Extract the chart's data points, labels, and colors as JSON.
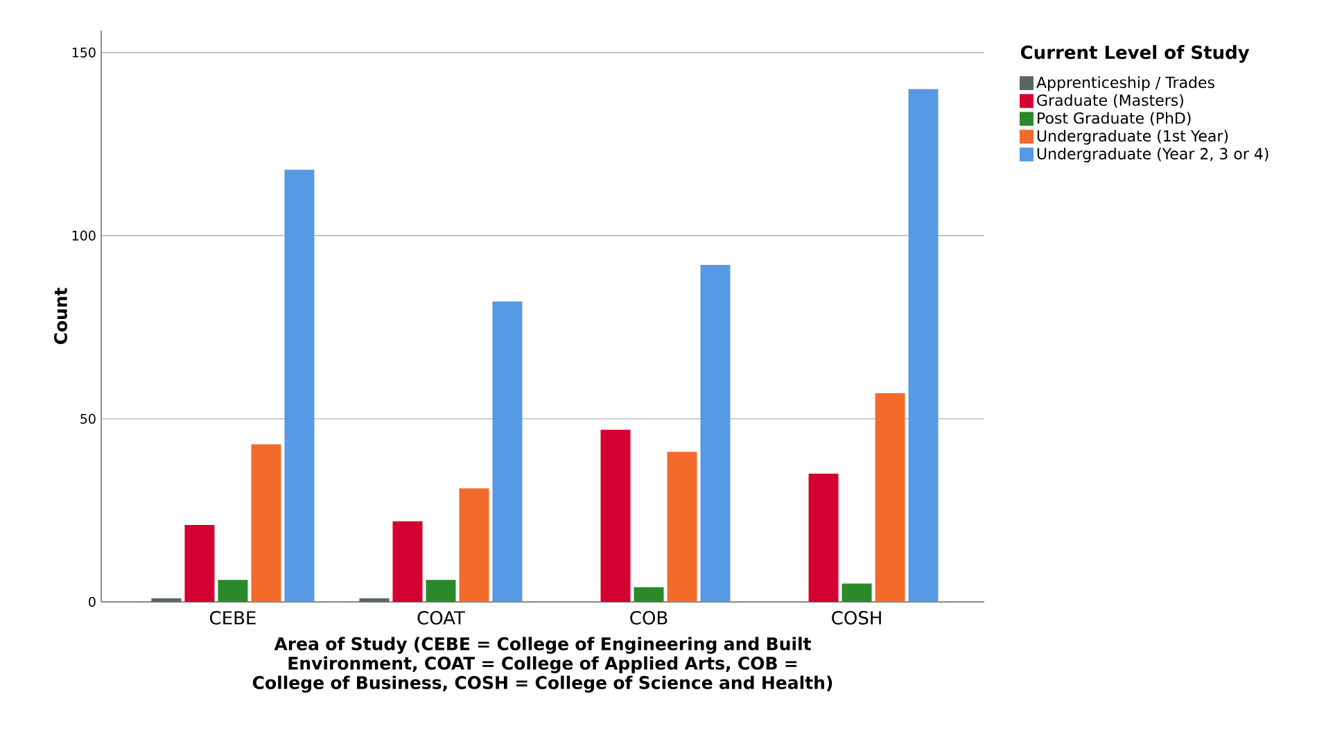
{
  "chart_data": {
    "type": "bar",
    "xlabel": "Area of Study (CEBE = College of Engineering and Built Environment, COAT = College of Applied Arts, COB = College of Business, COSH = College of Science and Health)",
    "ylabel": "Count",
    "legend_title": "Current Level of Study",
    "categories": [
      "CEBE",
      "COAT",
      "COB",
      "COSH"
    ],
    "series": [
      {
        "name": "Apprenticeship / Trades",
        "color": "#5a6660",
        "values": [
          1,
          1,
          null,
          null
        ]
      },
      {
        "name": "Graduate (Masters)",
        "color": "#d50032",
        "values": [
          21,
          22,
          47,
          35
        ]
      },
      {
        "name": "Post Graduate (PhD)",
        "color": "#2a8a2a",
        "values": [
          6,
          6,
          4,
          5
        ]
      },
      {
        "name": "Undergraduate (1st Year)",
        "color": "#f26b2b",
        "values": [
          43,
          31,
          41,
          57
        ]
      },
      {
        "name": "Undergraduate (Year 2, 3 or 4)",
        "color": "#5799e4",
        "values": [
          118,
          82,
          92,
          140
        ]
      }
    ],
    "ylim": [
      0,
      156
    ],
    "yticks": [
      0,
      50,
      100,
      150
    ],
    "grid": "y",
    "legend": "top right"
  }
}
